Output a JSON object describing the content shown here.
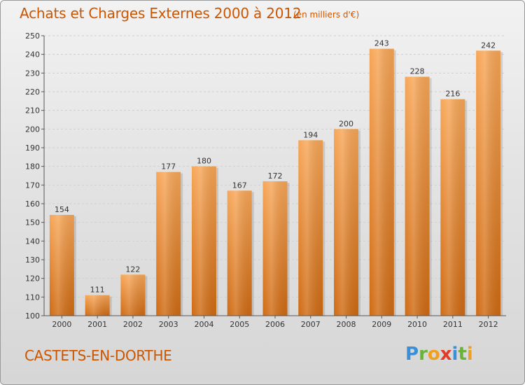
{
  "header": {
    "title": "Achats et Charges Externes 2000 à 2012",
    "subtitle": "(en milliers d'€)"
  },
  "footer": {
    "commune": "CASTETS-EN-DORTHE",
    "logo_letters": [
      {
        "ch": "P",
        "color": "#3a8fd6"
      },
      {
        "ch": "r",
        "color": "#6bb23a"
      },
      {
        "ch": "o",
        "color": "#f0a020"
      },
      {
        "ch": "x",
        "color": "#e03c2a"
      },
      {
        "ch": "i",
        "color": "#3a8fd6"
      },
      {
        "ch": "t",
        "color": "#6bb23a"
      },
      {
        "ch": "i",
        "color": "#f0a020"
      }
    ]
  },
  "chart_data": {
    "type": "bar",
    "title": "Achats et Charges Externes 2000 à 2012",
    "subtitle": "(en milliers d'€)",
    "categories": [
      "2000",
      "2001",
      "2002",
      "2003",
      "2004",
      "2005",
      "2006",
      "2007",
      "2008",
      "2009",
      "2010",
      "2011",
      "2012"
    ],
    "values": [
      154,
      111,
      122,
      177,
      180,
      167,
      172,
      194,
      200,
      243,
      228,
      216,
      242
    ],
    "ylim": [
      100,
      250
    ],
    "yticks": [
      100,
      110,
      120,
      130,
      140,
      150,
      160,
      170,
      180,
      190,
      200,
      210,
      220,
      230,
      240,
      250
    ],
    "grid": true,
    "legend": "none",
    "bar_color": "#f08a2a"
  }
}
